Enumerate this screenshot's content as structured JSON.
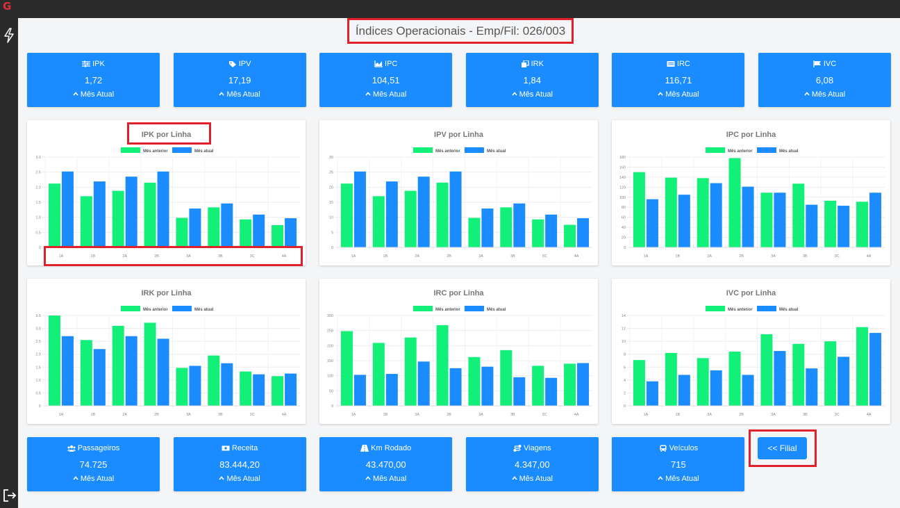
{
  "app": {
    "logo_letter": "G"
  },
  "page_title": "Índices Operacionais - Emp/Fil: 026/003",
  "top_cards": [
    {
      "label": "IPK",
      "icon": "sliders-icon",
      "value": "1,72",
      "sub": "Mês Atual"
    },
    {
      "label": "IPV",
      "icon": "tags-icon",
      "value": "17,19",
      "sub": "Mês Atual"
    },
    {
      "label": "IPC",
      "icon": "chart-area-icon",
      "value": "104,51",
      "sub": "Mês Atual"
    },
    {
      "label": "IRK",
      "icon": "copy-icon",
      "value": "1,84",
      "sub": "Mês Atual"
    },
    {
      "label": "IRC",
      "icon": "receipt-icon",
      "value": "116,71",
      "sub": "Mês Atual"
    },
    {
      "label": "IVC",
      "icon": "flag-icon",
      "value": "6,08",
      "sub": "Mês Atual"
    }
  ],
  "bottom_cards": [
    {
      "label": "Passageiros",
      "icon": "users-icon",
      "value": "74.725",
      "sub": "Mês Atual"
    },
    {
      "label": "Receita",
      "icon": "money-icon",
      "value": "83.444,20",
      "sub": "Mês Atual"
    },
    {
      "label": "Km Rodado",
      "icon": "road-icon",
      "value": "43.470,00",
      "sub": "Mês Atual"
    },
    {
      "label": "Viagens",
      "icon": "route-icon",
      "value": "4.347,00",
      "sub": "Mês Atual"
    },
    {
      "label": "Veículos",
      "icon": "bus-icon",
      "value": "715",
      "sub": "Mês Atual"
    }
  ],
  "filial_button": "<< Filial",
  "colors": {
    "previous": "#12f07a",
    "current": "#1a8cff",
    "card": "#1a8cff",
    "highlight": "#e0202a"
  },
  "chart_data": [
    {
      "type": "bar",
      "title": "IPK por Linha",
      "categories": [
        "1A",
        "1B",
        "2A",
        "2B",
        "3A",
        "3B",
        "3C",
        "4A"
      ],
      "series": [
        {
          "name": "Mês anterior",
          "values": [
            2.12,
            1.7,
            1.88,
            2.15,
            0.98,
            1.33,
            0.93,
            0.74
          ]
        },
        {
          "name": "Mês atual",
          "values": [
            2.52,
            2.19,
            2.35,
            2.52,
            1.29,
            1.46,
            1.09,
            0.97
          ]
        }
      ],
      "ylim": [
        0,
        3.0
      ],
      "yticks": [
        "0",
        "0.5",
        "1.0",
        "1.5",
        "2.0",
        "2.5",
        "3.0"
      ],
      "legend": "top"
    },
    {
      "type": "bar",
      "title": "IPV por Linha",
      "categories": [
        "1A",
        "1B",
        "2A",
        "2B",
        "3A",
        "3B",
        "3C",
        "4A"
      ],
      "series": [
        {
          "name": "Mês anterior",
          "values": [
            21.2,
            17.0,
            18.8,
            21.5,
            9.8,
            13.3,
            9.3,
            7.5
          ]
        },
        {
          "name": "Mês atual",
          "values": [
            25.2,
            21.9,
            23.5,
            25.2,
            12.9,
            14.6,
            10.9,
            9.7
          ]
        }
      ],
      "ylim": [
        0,
        30
      ],
      "yticks": [
        "0",
        "5",
        "10",
        "15",
        "20",
        "25",
        "30"
      ],
      "legend": "top"
    },
    {
      "type": "bar",
      "title": "IPC por Linha",
      "categories": [
        "1A",
        "1B",
        "2A",
        "2B",
        "3A",
        "3B",
        "3C",
        "4A"
      ],
      "series": [
        {
          "name": "Mês anterior",
          "values": [
            150,
            139,
            138,
            178,
            109,
            127,
            93,
            91
          ]
        },
        {
          "name": "Mês atual",
          "values": [
            96,
            105,
            128,
            121,
            109,
            85,
            83,
            109
          ]
        }
      ],
      "ylim": [
        0,
        180
      ],
      "yticks": [
        "0",
        "20",
        "40",
        "60",
        "80",
        "100",
        "120",
        "140",
        "160",
        "180"
      ],
      "legend": "top"
    },
    {
      "type": "bar",
      "title": "IRK por Linha",
      "categories": [
        "1A",
        "1B",
        "2A",
        "2B",
        "3A",
        "3B",
        "3C",
        "4A"
      ],
      "series": [
        {
          "name": "Mês anterior",
          "values": [
            3.5,
            2.55,
            3.1,
            3.22,
            1.47,
            1.95,
            1.33,
            1.15
          ]
        },
        {
          "name": "Mês atual",
          "values": [
            2.7,
            2.2,
            2.7,
            2.6,
            1.55,
            1.65,
            1.22,
            1.25
          ]
        }
      ],
      "ylim": [
        0,
        3.5
      ],
      "yticks": [
        "0",
        "0.5",
        "1.0",
        "1.5",
        "2.0",
        "2.5",
        "3.0",
        "3.5"
      ],
      "legend": "top"
    },
    {
      "type": "bar",
      "title": "IRC por Linha",
      "categories": [
        "1A",
        "1B",
        "2A",
        "2B",
        "3A",
        "3B",
        "3C",
        "4A"
      ],
      "series": [
        {
          "name": "Mês anterior",
          "values": [
            248,
            209,
            227,
            268,
            162,
            185,
            133,
            140
          ]
        },
        {
          "name": "Mês atual",
          "values": [
            103,
            106,
            147,
            125,
            130,
            95,
            93,
            142
          ]
        }
      ],
      "ylim": [
        0,
        300
      ],
      "yticks": [
        "0",
        "50",
        "100",
        "150",
        "200",
        "250",
        "300"
      ],
      "legend": "top"
    },
    {
      "type": "bar",
      "title": "IVC por Linha",
      "categories": [
        "1A",
        "1B",
        "2A",
        "2B",
        "3A",
        "3B",
        "3C",
        "4A"
      ],
      "series": [
        {
          "name": "Mês anterior",
          "values": [
            7.1,
            8.2,
            7.4,
            8.4,
            11.1,
            9.6,
            10.0,
            12.2
          ]
        },
        {
          "name": "Mês atual",
          "values": [
            3.8,
            4.8,
            5.5,
            4.8,
            8.5,
            5.8,
            7.6,
            11.3
          ]
        }
      ],
      "ylim": [
        0,
        14
      ],
      "yticks": [
        "0",
        "2",
        "4",
        "6",
        "8",
        "10",
        "12",
        "14"
      ],
      "legend": "top"
    }
  ]
}
